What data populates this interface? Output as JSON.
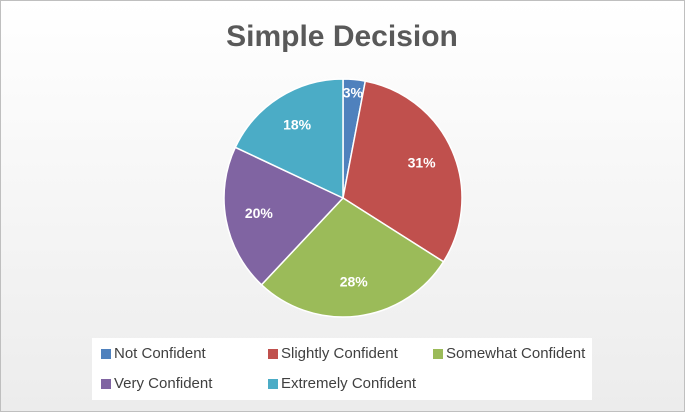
{
  "chart_data": {
    "type": "pie",
    "title": "Simple Decision",
    "categories": [
      "Not Confident",
      "Slightly Confident",
      "Somewhat Confident",
      "Very Confident",
      "Extremely Confident"
    ],
    "values": [
      3,
      31,
      28,
      20,
      18
    ],
    "value_labels": [
      "3%",
      "31%",
      "28%",
      "20%",
      "18%"
    ],
    "colors": [
      "#4f81bd",
      "#c0504d",
      "#9bbb59",
      "#8064a2",
      "#4bacc6"
    ],
    "legend": "bottom"
  }
}
